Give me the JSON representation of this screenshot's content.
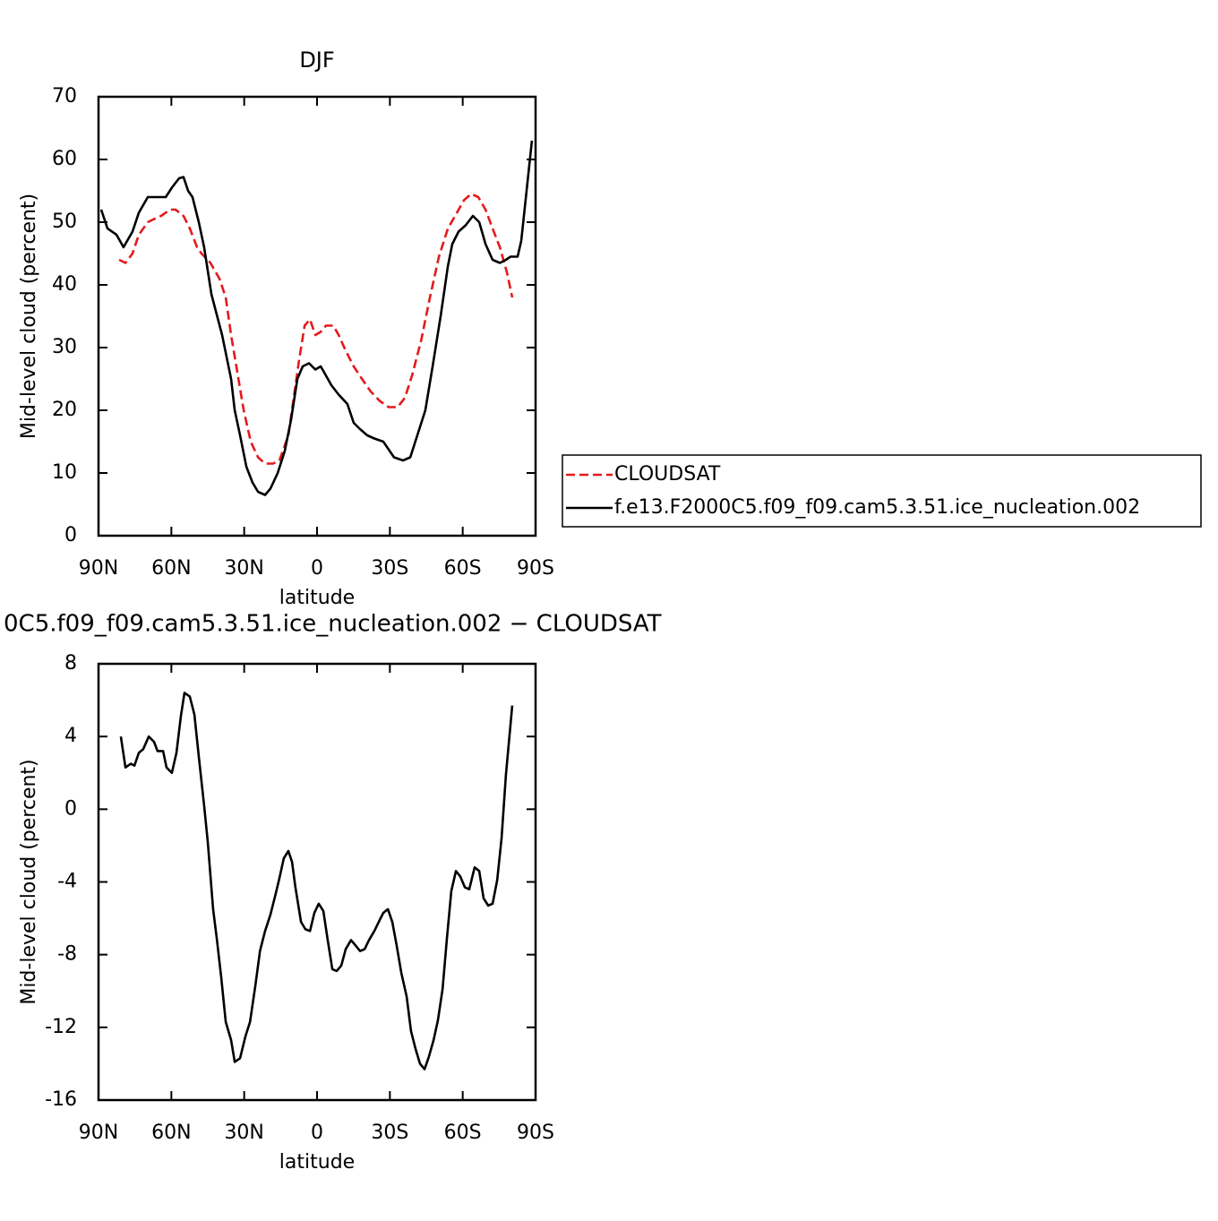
{
  "chart_data": [
    {
      "type": "line",
      "title": "DJF",
      "xlabel": "latitude",
      "ylabel": "Mid-level cloud (percent)",
      "xlim": [
        90,
        -90
      ],
      "xticks": [
        {
          "value": 90,
          "label": "90N"
        },
        {
          "value": 60,
          "label": "60N"
        },
        {
          "value": 30,
          "label": "30N"
        },
        0,
        {
          "value": -30,
          "label": "30S"
        },
        {
          "value": -60,
          "label": "60S"
        },
        {
          "value": -90,
          "label": "90S"
        }
      ],
      "ylim": [
        0,
        70
      ],
      "yticks": [
        0,
        10,
        20,
        30,
        40,
        50,
        60,
        70
      ],
      "legend": "right",
      "series": [
        {
          "name": "CLOUDSAT",
          "color": "#e41a1c",
          "line_style": "dashed",
          "x": [
            81.5,
            78.9,
            76.0,
            73.4,
            69.7,
            67.1,
            64.2,
            60.5,
            58.3,
            55.0,
            52.4,
            49.4,
            47.6,
            43.9,
            40.2,
            37.6,
            35.4,
            32.8,
            30.2,
            27.3,
            24.3,
            21.4,
            18.1,
            15.5,
            11.8,
            9.6,
            7.4,
            5.1,
            2.9,
            0.7,
            -1.5,
            -3.7,
            -6.7,
            -8.9,
            -11.8,
            -15.1,
            -18.5,
            -22.1,
            -25.8,
            -29.5,
            -33.2,
            -36.2,
            -39.1,
            -42.8,
            -46.5,
            -50.2,
            -53.9,
            -57.6,
            -60.5,
            -63.5,
            -66.4,
            -69.4,
            -72.3,
            -75.3,
            -78.2,
            -80.4
          ],
          "values": [
            44,
            43.5,
            45,
            48,
            50,
            50.5,
            51,
            52,
            52,
            51,
            49,
            46,
            45,
            43.5,
            41,
            38,
            32,
            26,
            20,
            15,
            12.5,
            11.5,
            11.5,
            12,
            16,
            22,
            28,
            33.5,
            34.5,
            32,
            32.5,
            33.5,
            33.5,
            32,
            29.5,
            27,
            25,
            23,
            21.5,
            20.5,
            20.5,
            22,
            25.5,
            31,
            38,
            44.5,
            49,
            51.5,
            53.5,
            54.5,
            54,
            52,
            49,
            46,
            42,
            38
          ]
        },
        {
          "name": "f.e13.F2000C5.f09_f09.cam5.3.51.ice_nucleation.002",
          "color": "#000000",
          "line_style": "solid",
          "x": [
            88.9,
            86.3,
            82.6,
            79.7,
            76.0,
            73.4,
            69.7,
            67.1,
            64.2,
            62.3,
            59.8,
            56.8,
            55.0,
            53.1,
            51.3,
            48.7,
            46.5,
            43.5,
            39.1,
            35.4,
            33.9,
            31.7,
            29.1,
            26.6,
            24.3,
            21.4,
            19.2,
            16.2,
            13.3,
            10.7,
            8.1,
            5.9,
            3.3,
            0.7,
            -1.5,
            -3.0,
            -5.9,
            -8.9,
            -12.5,
            -15.1,
            -17.7,
            -20.7,
            -23.6,
            -27.3,
            -31.7,
            -35.4,
            -38.4,
            -41.3,
            -44.6,
            -47.6,
            -50.9,
            -53.9,
            -55.7,
            -58.3,
            -61.2,
            -64.2,
            -66.8,
            -69.4,
            -72.3,
            -75.3,
            -77.8,
            -79.7,
            -82.6,
            -84.1,
            -86.3,
            -88.5
          ],
          "values": [
            52,
            49,
            48,
            46,
            48.5,
            51.5,
            54,
            54,
            54,
            54,
            55.5,
            57,
            57.2,
            55,
            54,
            50,
            46,
            38.5,
            32,
            25,
            20,
            16,
            11,
            8.5,
            7,
            6.5,
            7.5,
            10,
            13.5,
            18.5,
            25,
            27,
            27.5,
            26.5,
            27,
            26,
            24,
            22.5,
            21,
            18,
            17,
            16,
            15.5,
            15,
            12.5,
            12,
            12.5,
            16,
            20,
            27,
            35,
            43,
            46.5,
            48.5,
            49.5,
            51,
            50,
            46.5,
            44,
            43.5,
            44,
            44.5,
            44.5,
            47,
            55,
            63
          ]
        }
      ]
    },
    {
      "type": "line",
      "title": "0C5.f09_f09.cam5.3.51.ice_nucleation.002 − CLOUDSAT",
      "xlabel": "latitude",
      "ylabel": "Mid-level cloud (percent)",
      "xlim": [
        90,
        -90
      ],
      "xticks": [
        {
          "value": 90,
          "label": "90N"
        },
        {
          "value": 60,
          "label": "60N"
        },
        {
          "value": 30,
          "label": "30N"
        },
        0,
        {
          "value": -30,
          "label": "30S"
        },
        {
          "value": -60,
          "label": "60S"
        },
        {
          "value": -90,
          "label": "90S"
        }
      ],
      "ylim": [
        -16,
        8
      ],
      "yticks": [
        -16,
        -12,
        -8,
        -4,
        0,
        4,
        8
      ],
      "series": [
        {
          "color": "#000000",
          "line_style": "solid",
          "x": [
            80.8,
            78.9,
            76.7,
            75.2,
            73.4,
            71.6,
            69.3,
            67.1,
            65.7,
            63.4,
            62.0,
            59.8,
            57.9,
            56.1,
            54.6,
            52.4,
            50.5,
            48.7,
            46.5,
            45.0,
            42.8,
            41.3,
            39.5,
            37.6,
            35.4,
            33.9,
            31.7,
            29.5,
            27.6,
            25.4,
            23.5,
            21.4,
            19.2,
            17.3,
            15.5,
            13.7,
            11.8,
            10.3,
            8.9,
            6.6,
            4.8,
            2.9,
            1.1,
            -0.7,
            -2.6,
            -4.4,
            -6.3,
            -8.1,
            -10.0,
            -11.8,
            -14.0,
            -15.9,
            -17.7,
            -19.6,
            -21.4,
            -23.6,
            -25.8,
            -27.3,
            -29.2,
            -31.0,
            -32.8,
            -34.7,
            -36.9,
            -38.7,
            -40.6,
            -42.4,
            -44.3,
            -46.1,
            -48.0,
            -49.8,
            -51.7,
            -53.5,
            -55.3,
            -57.2,
            -59.0,
            -60.9,
            -62.7,
            -64.9,
            -66.8,
            -68.6,
            -70.5,
            -72.3,
            -74.2,
            -76.0,
            -77.8,
            -80.4
          ],
          "values": [
            4,
            2.3,
            2.5,
            2.4,
            3.1,
            3.3,
            4,
            3.7,
            3.2,
            3.2,
            2.3,
            2.0,
            3.1,
            5.1,
            6.4,
            6.2,
            5.2,
            2.9,
            0.2,
            -1.8,
            -5.5,
            -7.1,
            -9.2,
            -11.7,
            -12.7,
            -13.9,
            -13.7,
            -12.5,
            -11.7,
            -9.7,
            -7.8,
            -6.7,
            -5.8,
            -4.8,
            -3.8,
            -2.7,
            -2.3,
            -2.9,
            -4.3,
            -6.2,
            -6.6,
            -6.7,
            -5.7,
            -5.2,
            -5.6,
            -7.2,
            -8.8,
            -8.9,
            -8.6,
            -7.7,
            -7.2,
            -7.5,
            -7.8,
            -7.7,
            -7.2,
            -6.7,
            -6.1,
            -5.7,
            -5.5,
            -6.2,
            -7.5,
            -9.0,
            -10.3,
            -12.2,
            -13.2,
            -14.0,
            -14.3,
            -13.6,
            -12.7,
            -11.6,
            -9.9,
            -7.1,
            -4.5,
            -3.4,
            -3.7,
            -4.3,
            -4.4,
            -3.2,
            -3.4,
            -4.9,
            -5.3,
            -5.2,
            -3.9,
            -1.6,
            1.9,
            5.7
          ]
        }
      ]
    }
  ]
}
